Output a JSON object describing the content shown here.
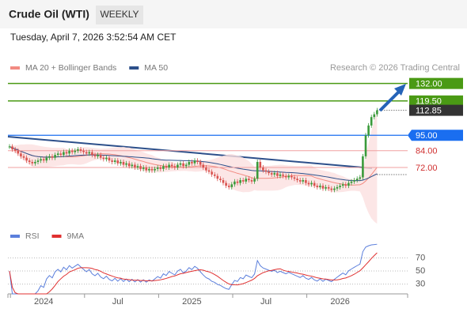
{
  "chart_data": {
    "type": "candlestick",
    "title": "Crude Oil (WTI)",
    "timeframe": "WEEKLY",
    "subtitle": "Tuesday, April 7, 2026 3:52:54 AM CET",
    "credit": "Research © 2026 Trading Central",
    "indicators": [
      {
        "name": "MA 20 + Bollinger Bands",
        "color": "#f28b82"
      },
      {
        "name": "MA 50",
        "color": "#2c4f8a"
      }
    ],
    "up_color": "#3a9a3a",
    "down_color": "#d9534f",
    "close": [
      87,
      85,
      84,
      82,
      80,
      79,
      77,
      76,
      75,
      76,
      77,
      78,
      77,
      79,
      80,
      79,
      81,
      82,
      81,
      83,
      82,
      84,
      83,
      84,
      85,
      84,
      83,
      82,
      83,
      81,
      80,
      81,
      79,
      78,
      79,
      77,
      76,
      77,
      75,
      76,
      74,
      75,
      73,
      74,
      72,
      73,
      71,
      72,
      70,
      71,
      70,
      71,
      72,
      71,
      73,
      72,
      74,
      73,
      72,
      74,
      75,
      73,
      74,
      76,
      75,
      77,
      76,
      74,
      72,
      70,
      69,
      67,
      66,
      64,
      63,
      61,
      59,
      58,
      60,
      62,
      61,
      63,
      62,
      64,
      63,
      62,
      64,
      76,
      72,
      70,
      69,
      68,
      67,
      68,
      66,
      67,
      66,
      65,
      66,
      65,
      64,
      63,
      62,
      63,
      61,
      60,
      61,
      59,
      58,
      59,
      57,
      58,
      57,
      56,
      57,
      58,
      59,
      60,
      59,
      61,
      62,
      63,
      64,
      65,
      80,
      95,
      102,
      108,
      110,
      112.85
    ],
    "xticks": [
      {
        "value": 12,
        "label": "2024"
      },
      {
        "value": 38,
        "label": "Jul"
      },
      {
        "value": 64,
        "label": "2025"
      },
      {
        "value": 90,
        "label": "Jul"
      },
      {
        "value": 116,
        "label": "2026"
      }
    ],
    "ylim": [
      32,
      138
    ],
    "levels": [
      {
        "value": 132,
        "label": "132.00",
        "color": "#4a9a14",
        "style": "box"
      },
      {
        "value": 119.5,
        "label": "119.50",
        "color": "#4a9a14",
        "style": "box"
      },
      {
        "value": 112.85,
        "label": "112.85",
        "color": "#333333",
        "style": "last"
      },
      {
        "value": 95,
        "label": "95.00",
        "color": "#1a6ef0",
        "style": "box"
      },
      {
        "value": 84,
        "label": "84.00",
        "color": "#d03030",
        "style": "text"
      },
      {
        "value": 72,
        "label": "72.00",
        "color": "#d03030",
        "style": "text"
      }
    ],
    "rsi": {
      "indicators": [
        {
          "name": "RSI",
          "color": "#5b7fdc"
        },
        {
          "name": "9MA",
          "color": "#e03030"
        }
      ],
      "ylim": [
        15,
        102
      ],
      "yticks": [
        70,
        50,
        30
      ]
    }
  }
}
